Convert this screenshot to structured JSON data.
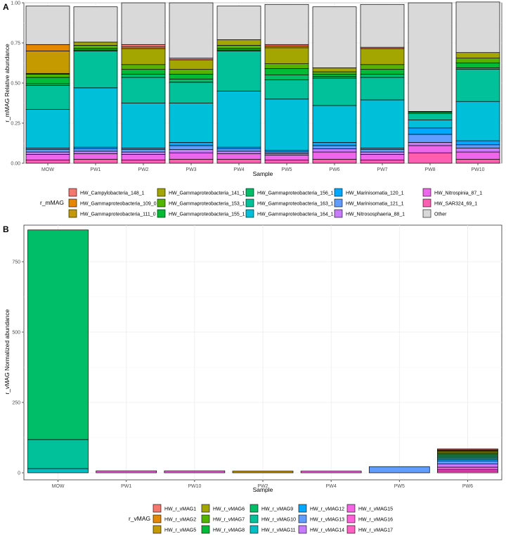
{
  "chart_data": [
    {
      "panel": "A",
      "type": "bar",
      "stacked": true,
      "xlabel": "Sample",
      "ylabel": "r_mMAG Relative abundance",
      "ylim": [
        0,
        1
      ],
      "yticks": [
        "0.00",
        "0.25",
        "0.50",
        "0.75",
        "1.00"
      ],
      "ytick_values": [
        0,
        0.25,
        0.5,
        0.75,
        1.0
      ],
      "categories": [
        "MOW",
        "PW1",
        "PW2",
        "PW3",
        "PW4",
        "PW5",
        "PW6",
        "PW7",
        "PW8",
        "PW10"
      ],
      "legend_title": "r_mMAG",
      "legend_position": "bottom",
      "series": [
        {
          "name": "HW_SAR324_69_1",
          "color": "#FF5FB0",
          "values": [
            0.02,
            0.025,
            0.02,
            0.025,
            0.025,
            0.02,
            0.025,
            0.02,
            0.065,
            0.025
          ]
        },
        {
          "name": "HW_Nitrospinia_87_1",
          "color": "#F066EA",
          "values": [
            0.035,
            0.035,
            0.035,
            0.04,
            0.035,
            0.03,
            0.045,
            0.035,
            0.045,
            0.045
          ]
        },
        {
          "name": "HW_Nitrososphaeria_88_1",
          "color": "#C77CFF",
          "values": [
            0.015,
            0.015,
            0.015,
            0.02,
            0.015,
            0.01,
            0.02,
            0.015,
            0.02,
            0.025
          ]
        },
        {
          "name": "HW_Marinisomatia_121_1",
          "color": "#619CFF",
          "values": [
            0.015,
            0.015,
            0.015,
            0.025,
            0.015,
            0.01,
            0.02,
            0.015,
            0.05,
            0.02
          ]
        },
        {
          "name": "HW_Marinisomatia_120_1",
          "color": "#00A9FF",
          "values": [
            0.01,
            0.01,
            0.01,
            0.02,
            0.01,
            0.01,
            0.02,
            0.01,
            0.04,
            0.025
          ]
        },
        {
          "name": "HW_Gammaproteobacteria_164_1",
          "color": "#00BFD8",
          "values": [
            0.24,
            0.37,
            0.28,
            0.245,
            0.35,
            0.32,
            0.23,
            0.3,
            0.05,
            0.245
          ]
        },
        {
          "name": "HW_Gammaproteobacteria_163_1",
          "color": "#00C19A",
          "values": [
            0.15,
            0.23,
            0.16,
            0.13,
            0.25,
            0.12,
            0.17,
            0.14,
            0.04,
            0.2
          ]
        },
        {
          "name": "HW_Gammaproteobacteria_156_1",
          "color": "#00BE67",
          "values": [
            0.01,
            0.005,
            0.02,
            0.02,
            0.005,
            0.03,
            0.01,
            0.02,
            0.008,
            0.01
          ]
        },
        {
          "name": "HW_Gammaproteobacteria_155_1",
          "color": "#00BA38",
          "values": [
            0.04,
            0.01,
            0.03,
            0.03,
            0.01,
            0.04,
            0.015,
            0.03,
            0.005,
            0.03
          ]
        },
        {
          "name": "HW_Gammaproteobacteria_153_1",
          "color": "#53B400",
          "values": [
            0.02,
            0.02,
            0.03,
            0.03,
            0.02,
            0.03,
            0.015,
            0.03,
            0.0,
            0.03
          ]
        },
        {
          "name": "HW_Gammaproteobacteria_141_1",
          "color": "#A3A500",
          "values": [
            0.005,
            0.02,
            0.1,
            0.06,
            0.035,
            0.1,
            0.025,
            0.1,
            0.0,
            0.035
          ]
        },
        {
          "name": "HW_Gammaproteobacteria_111_0",
          "color": "#C49A00",
          "values": [
            0.14,
            0.0,
            0.0,
            0.0,
            0.0,
            0.01,
            0.0,
            0.0,
            0.0,
            0.0
          ]
        },
        {
          "name": "HW_Gammaproteobacteria_109_0",
          "color": "#E58700",
          "values": [
            0.04,
            0.0,
            0.01,
            0.0,
            0.0,
            0.0,
            0.0,
            0.0,
            0.0,
            0.0
          ]
        },
        {
          "name": "HW_Campylobacteria_148_1",
          "color": "#F8766D",
          "values": [
            0.0,
            0.0,
            0.015,
            0.01,
            0.0,
            0.01,
            0.0,
            0.008,
            0.0,
            0.0
          ]
        },
        {
          "name": "Other",
          "color": "#D9D9D9",
          "values": [
            0.24,
            0.22,
            0.26,
            0.345,
            0.21,
            0.25,
            0.38,
            0.267,
            0.677,
            0.315
          ]
        }
      ],
      "legend_order": [
        "HW_Campylobacteria_148_1",
        "HW_Gammaproteobacteria_109_0",
        "HW_Gammaproteobacteria_111_0",
        "HW_Gammaproteobacteria_141_1",
        "HW_Gammaproteobacteria_153_1",
        "HW_Gammaproteobacteria_155_1",
        "HW_Gammaproteobacteria_156_1",
        "HW_Gammaproteobacteria_163_1",
        "HW_Gammaproteobacteria_164_1",
        "HW_Marinisomatia_120_1",
        "HW_Marinisomatia_121_1",
        "HW_Nitrososphaeria_88_1",
        "HW_Nitrospinia_87_1",
        "HW_SAR324_69_1",
        "Other"
      ]
    },
    {
      "panel": "B",
      "type": "bar",
      "stacked": true,
      "xlabel": "Sample",
      "ylabel": "r_vMAG Normalized abundance",
      "ylim": [
        -25,
        880
      ],
      "yticks": [
        "0",
        "250",
        "500",
        "750"
      ],
      "ytick_values": [
        0,
        250,
        500,
        750
      ],
      "categories": [
        "MOW",
        "PW1",
        "PW10",
        "PW2",
        "PW4",
        "PW5",
        "PW6"
      ],
      "legend_title": "r_vMAG",
      "legend_position": "bottom",
      "series": [
        {
          "name": "HW_r_vMAG17",
          "color": "#FF61C3",
          "values": [
            0,
            0,
            0,
            0,
            0,
            0,
            6
          ]
        },
        {
          "name": "HW_r_vMAG16",
          "color": "#FF61DB",
          "values": [
            0,
            0,
            0,
            0,
            0,
            0,
            6
          ]
        },
        {
          "name": "HW_r_vMAG15",
          "color": "#F564E3",
          "values": [
            0,
            7,
            7,
            0,
            6,
            0,
            8
          ]
        },
        {
          "name": "HW_r_vMAG14",
          "color": "#C77CFF",
          "values": [
            0,
            0,
            0,
            0,
            0,
            0,
            12
          ]
        },
        {
          "name": "HW_r_vMAG13",
          "color": "#619CFF",
          "values": [
            0,
            0,
            0,
            0,
            0,
            22,
            10
          ]
        },
        {
          "name": "HW_r_vMAG12",
          "color": "#00A9FF",
          "values": [
            0,
            0,
            0,
            0,
            0,
            0,
            6
          ]
        },
        {
          "name": "HW_r_vMAG11",
          "color": "#00BFC4",
          "values": [
            15,
            0,
            0,
            0,
            0,
            0,
            5
          ]
        },
        {
          "name": "HW_r_vMAG10",
          "color": "#00C19A",
          "values": [
            103,
            0,
            0,
            0,
            0,
            0,
            5
          ]
        },
        {
          "name": "HW_r_vMAG9",
          "color": "#00BE67",
          "values": [
            745,
            0,
            0,
            0,
            0,
            0,
            5
          ]
        },
        {
          "name": "HW_r_vMAG8",
          "color": "#00BA38",
          "values": [
            0,
            0,
            0,
            0,
            0,
            0,
            5
          ]
        },
        {
          "name": "HW_r_vMAG7",
          "color": "#53B400",
          "values": [
            0,
            0,
            0,
            0,
            0,
            0,
            4
          ]
        },
        {
          "name": "HW_r_vMAG6",
          "color": "#A3A500",
          "values": [
            0,
            0,
            0,
            0,
            0,
            0,
            4
          ]
        },
        {
          "name": "HW_r_vMAG5",
          "color": "#C49A00",
          "values": [
            0,
            0,
            0,
            6,
            0,
            0,
            3
          ]
        },
        {
          "name": "HW_r_vMAG2",
          "color": "#E58700",
          "values": [
            0,
            0,
            0,
            0,
            0,
            0,
            3
          ]
        },
        {
          "name": "HW_r_vMAG1",
          "color": "#F8766D",
          "values": [
            0,
            0,
            0,
            0,
            0,
            0,
            3
          ]
        }
      ],
      "legend_order": [
        "HW_r_vMAG1",
        "HW_r_vMAG2",
        "HW_r_vMAG5",
        "HW_r_vMAG6",
        "HW_r_vMAG7",
        "HW_r_vMAG8",
        "HW_r_vMAG9",
        "HW_r_vMAG10",
        "HW_r_vMAG11",
        "HW_r_vMAG12",
        "HW_r_vMAG13",
        "HW_r_vMAG14",
        "HW_r_vMAG15",
        "HW_r_vMAG16",
        "HW_r_vMAG17"
      ]
    }
  ]
}
